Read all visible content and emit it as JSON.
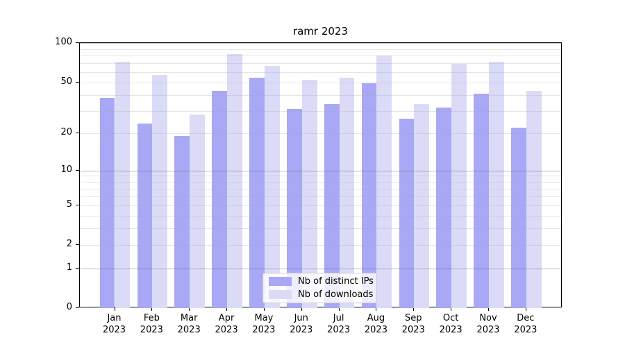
{
  "chart_data": {
    "type": "bar",
    "title": "ramr 2023",
    "categories": [
      "Jan",
      "Feb",
      "Mar",
      "Apr",
      "May",
      "Jun",
      "Jul",
      "Aug",
      "Sep",
      "Oct",
      "Nov",
      "Dec"
    ],
    "category_year": "2023",
    "series": [
      {
        "name": "Nb of distinct IPs",
        "color": "#a8a8f6",
        "values": [
          38,
          24,
          19,
          43,
          54,
          31,
          34,
          49,
          26,
          32,
          41,
          22
        ]
      },
      {
        "name": "Nb of downloads",
        "color": "#dbdbf8",
        "values": [
          72,
          57,
          28,
          82,
          67,
          52,
          54,
          80,
          34,
          69,
          72,
          43
        ]
      }
    ],
    "xlabel": "",
    "ylabel": "",
    "ylim": [
      0,
      100
    ],
    "yscale": "log10(value+1)",
    "ytick_labels": [
      100,
      50,
      20,
      10,
      5,
      2,
      1,
      0
    ],
    "major_grid_values": [
      1,
      10,
      100
    ],
    "minor_grid_values": [
      2,
      3,
      4,
      5,
      6,
      7,
      8,
      9,
      20,
      30,
      40,
      50,
      60,
      70,
      80,
      90
    ],
    "grid": true,
    "legend_position": "lower center",
    "colors": {
      "spine": "#000000",
      "text": "#000000",
      "background": "#ffffff",
      "legend_border": "#cccccc"
    }
  }
}
